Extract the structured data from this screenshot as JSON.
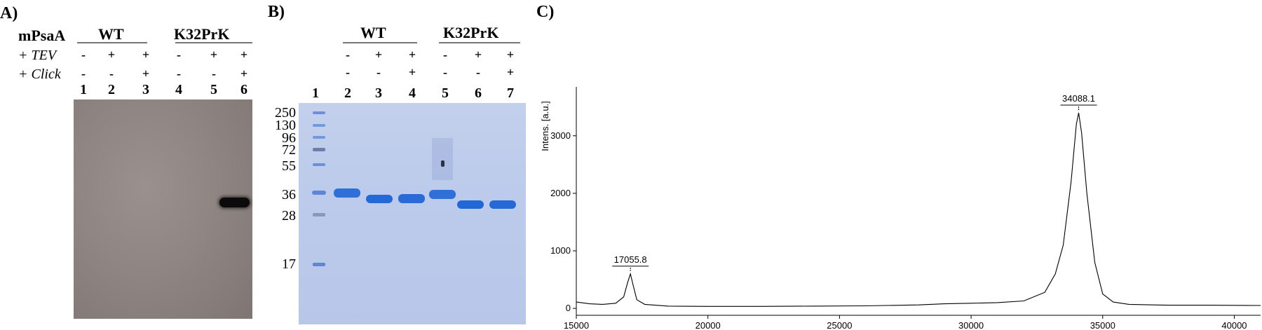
{
  "panel_a": {
    "label": "A)",
    "row_header": "mPsaA",
    "groups": [
      "WT",
      "K32PrK"
    ],
    "tev_label": "+ TEV",
    "click_label": "+ Click",
    "tev": [
      "-",
      "+",
      "+",
      "-",
      "+",
      "+"
    ],
    "click": [
      "-",
      "-",
      "+",
      "-",
      "-",
      "+"
    ],
    "lanes": [
      "1",
      "2",
      "3",
      "4",
      "5",
      "6"
    ]
  },
  "panel_b": {
    "label": "B)",
    "groups": [
      "WT",
      "K32PrK"
    ],
    "tev": [
      "-",
      "+",
      "+",
      "-",
      "+",
      "+"
    ],
    "click": [
      "-",
      "-",
      "+",
      "-",
      "-",
      "+"
    ],
    "lanes": [
      "1",
      "2",
      "3",
      "4",
      "5",
      "6",
      "7"
    ],
    "markers": [
      "250",
      "130",
      "96",
      "72",
      "55",
      "36",
      "28",
      "17"
    ]
  },
  "panel_c": {
    "label": "C)"
  },
  "chart_data": {
    "type": "line",
    "title": "",
    "xlabel": "",
    "ylabel": "Intens. [a.u.]",
    "xlim": [
      15000,
      41000
    ],
    "ylim": [
      -120,
      3850
    ],
    "xticks": [
      15000,
      20000,
      25000,
      30000,
      35000,
      40000
    ],
    "yticks": [
      0,
      1000,
      2000,
      3000
    ],
    "series": [
      {
        "x": [
          15000,
          15500,
          16000,
          16500,
          16800,
          16950,
          17055.8,
          17150,
          17300,
          17600,
          18500,
          20000,
          22000,
          24000,
          26000,
          28000,
          29000,
          30000,
          31000,
          32000,
          32800,
          33200,
          33500,
          33800,
          34000,
          34088.1,
          34200,
          34400,
          34700,
          35000,
          35400,
          36000,
          37500,
          39000,
          41000
        ],
        "y": [
          110,
          80,
          70,
          90,
          200,
          450,
          600,
          420,
          150,
          70,
          40,
          35,
          35,
          40,
          45,
          60,
          80,
          90,
          100,
          130,
          280,
          600,
          1100,
          2200,
          3200,
          3400,
          3050,
          2000,
          800,
          250,
          110,
          70,
          55,
          55,
          50
        ]
      }
    ],
    "annotations": [
      {
        "x": 17055.8,
        "y": 600,
        "text": "17055.8"
      },
      {
        "x": 34088.1,
        "y": 3400,
        "text": "34088.1"
      }
    ]
  }
}
